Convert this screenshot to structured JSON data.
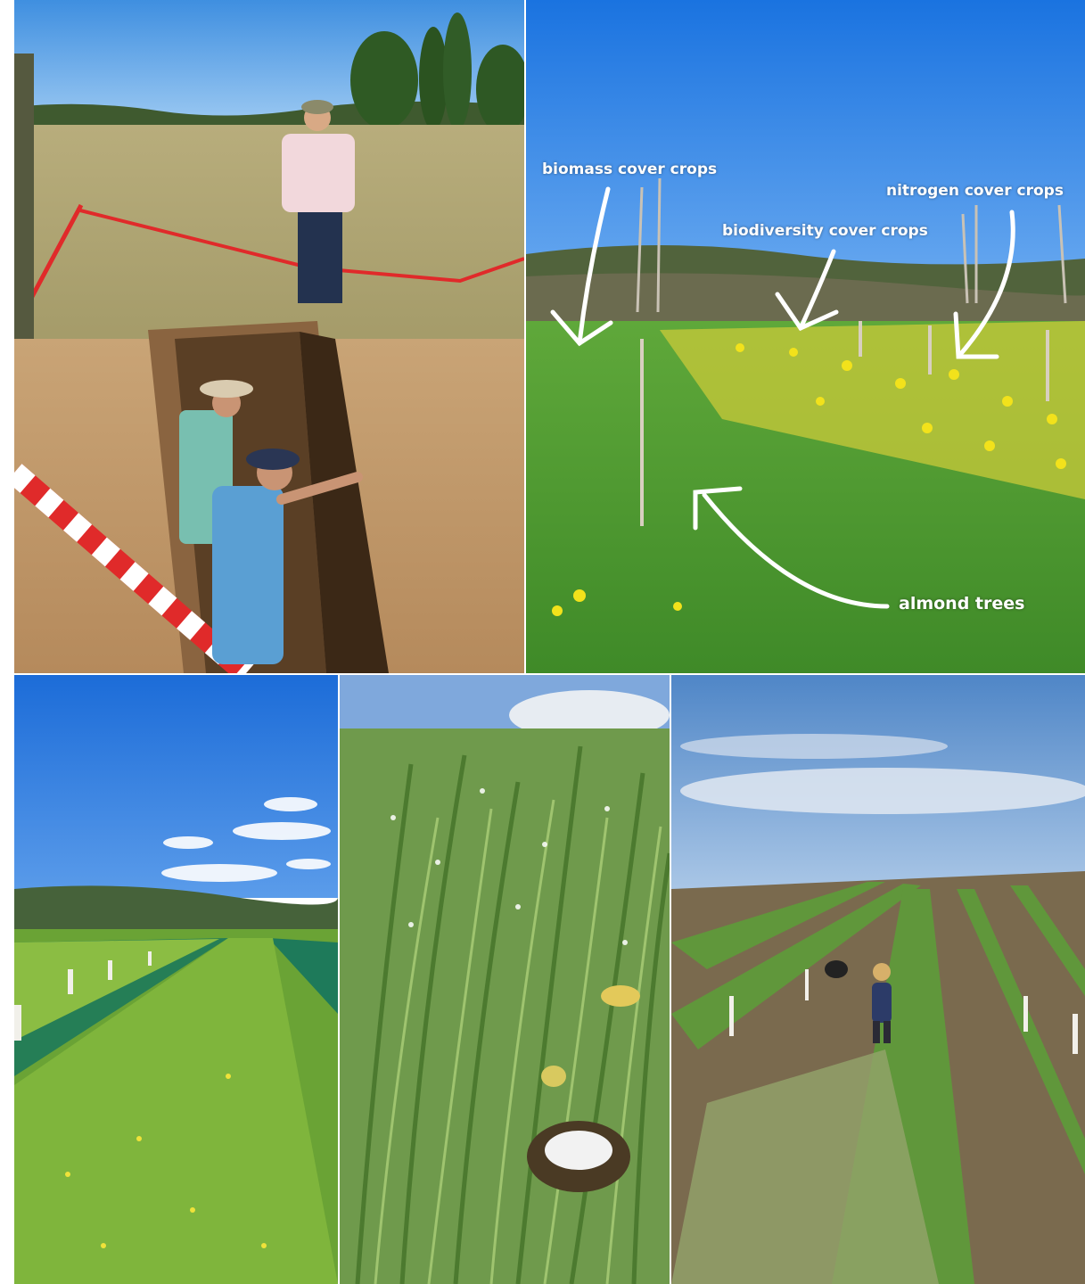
{
  "collage": {
    "photos": [
      {
        "id": "soil-pit"
      },
      {
        "id": "annotated-orchard"
      },
      {
        "id": "netted-rows"
      },
      {
        "id": "cover-crop-closeup"
      },
      {
        "id": "field-sampling"
      }
    ],
    "annotations": {
      "biomass": "biomass cover crops",
      "nitrogen": "nitrogen cover crops",
      "biodiversity": "biodiversity cover crops",
      "almond": "almond trees"
    }
  }
}
